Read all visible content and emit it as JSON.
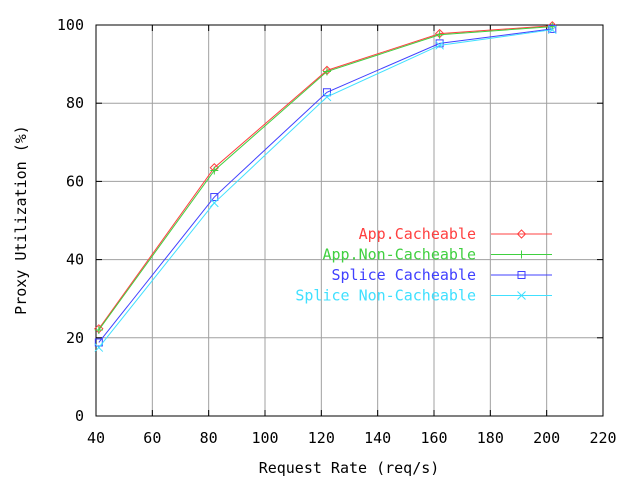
{
  "chart_data": {
    "type": "line",
    "title": "",
    "xlabel": "Request Rate (req/s)",
    "ylabel": "Proxy Utilization (%)",
    "xlim": [
      40,
      220
    ],
    "ylim": [
      0,
      100
    ],
    "x_ticks": [
      40,
      60,
      80,
      100,
      120,
      140,
      160,
      180,
      200,
      220
    ],
    "y_ticks": [
      0,
      20,
      40,
      60,
      80,
      100
    ],
    "x_tick_labels": [
      "40",
      "60",
      "80",
      "100",
      "120",
      "140",
      "160",
      "180",
      "200",
      "220"
    ],
    "y_tick_labels": [
      "0",
      "20",
      "40",
      "60",
      "80",
      "100"
    ],
    "grid": true,
    "legend_position": "center-right",
    "series": [
      {
        "name": "App.Cacheable",
        "color": "#ff4040",
        "marker": "diamond",
        "x": [
          41,
          82,
          122,
          162,
          202
        ],
        "values": [
          22.3,
          63.5,
          88.4,
          97.8,
          99.8
        ]
      },
      {
        "name": "App.Non-Cacheable",
        "color": "#40d040",
        "marker": "plus",
        "x": [
          41,
          82,
          122,
          162,
          202
        ],
        "values": [
          22.0,
          62.8,
          88.1,
          97.5,
          99.6
        ]
      },
      {
        "name": "Splice Cacheable",
        "color": "#4040ff",
        "marker": "square",
        "x": [
          41,
          82,
          122,
          162,
          202
        ],
        "values": [
          18.8,
          56.0,
          82.8,
          95.3,
          99.0
        ]
      },
      {
        "name": "Splice Non-Cacheable",
        "color": "#40e0ff",
        "marker": "cross",
        "x": [
          41,
          82,
          122,
          162,
          202
        ],
        "values": [
          17.5,
          54.5,
          81.6,
          94.8,
          98.8
        ]
      }
    ]
  }
}
